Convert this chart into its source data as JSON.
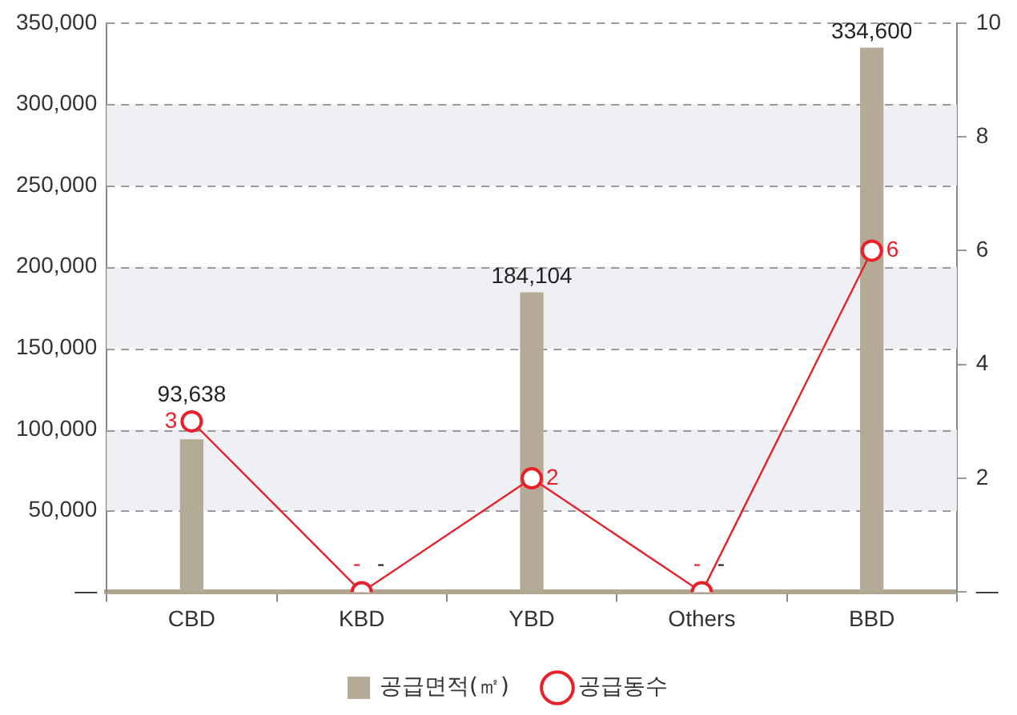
{
  "chart_data": {
    "type": "bar",
    "categories": [
      "CBD",
      "KBD",
      "YBD",
      "Others",
      "BBD"
    ],
    "series": [
      {
        "name": "공급면적(㎡)",
        "color": "#b5aa98",
        "values": [
          93638,
          null,
          184104,
          null,
          334600
        ],
        "value_labels": [
          "93,638",
          "-",
          "184,104",
          "-",
          "334,600"
        ]
      },
      {
        "name": "공급동수",
        "type": "line",
        "axis": "y2",
        "color": "#e8202a",
        "values": [
          3,
          0,
          2,
          0,
          6
        ],
        "value_labels": [
          "3",
          "-",
          "2",
          "-",
          "6"
        ]
      }
    ],
    "ylim": [
      0,
      350000
    ],
    "yticks": [
      {
        "value": 0,
        "label": "—"
      },
      {
        "value": 50000,
        "label": "50,000"
      },
      {
        "value": 100000,
        "label": "100,000"
      },
      {
        "value": 150000,
        "label": "150,000"
      },
      {
        "value": 200000,
        "label": "200,000"
      },
      {
        "value": 250000,
        "label": "250,000"
      },
      {
        "value": 300000,
        "label": "300,000"
      },
      {
        "value": 350000,
        "label": "350,000"
      }
    ],
    "y2lim": [
      0,
      10
    ],
    "y2ticks": [
      {
        "value": 0,
        "label": "—"
      },
      2,
      4,
      6,
      8,
      10
    ],
    "bands": [
      {
        "axis": "y",
        "from": 50000,
        "to": 100000,
        "color": "#eff0f4"
      },
      {
        "axis": "y",
        "from": 150000,
        "to": 200000,
        "color": "#eff0f4"
      },
      {
        "axis": "y",
        "from": 250000,
        "to": 300000,
        "color": "#eff0f4"
      }
    ],
    "grid": "y",
    "legend": "bottom",
    "marker": "circle",
    "line_style": "solid"
  }
}
